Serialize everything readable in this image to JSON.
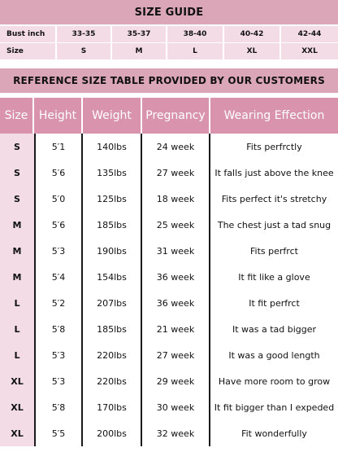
{
  "size_guide": {
    "title": "SIZE GUIDE",
    "rows": [
      [
        "Bust inch",
        "33-35",
        "35-37",
        "38-40",
        "40-42",
        "42-44"
      ],
      [
        "Size",
        "S",
        "M",
        "L",
        "XL",
        "XXL"
      ]
    ]
  },
  "reference": {
    "title": "REFERENCE SIZE TABLE PROVIDED BY OUR CUSTOMERS",
    "headers": [
      "Size",
      "Height",
      "Weight",
      "Pregnancy",
      "Wearing Effection"
    ],
    "rows": [
      [
        "S",
        "5′1",
        "140lbs",
        "24 week",
        "Fits perfrctly"
      ],
      [
        "S",
        "5′6",
        "135lbs",
        "27 week",
        "It falls just above the knee"
      ],
      [
        "S",
        "5′0",
        "125lbs",
        "18 week",
        "Fits perfect it's stretchy"
      ],
      [
        "M",
        "5′6",
        "185lbs",
        "25 week",
        "The chest just a tad snug"
      ],
      [
        "M",
        "5′3",
        "190lbs",
        "31 week",
        "Fits perfrct"
      ],
      [
        "M",
        "5′4",
        "154lbs",
        "36 week",
        "It fit like a glove"
      ],
      [
        "L",
        "5′2",
        "207lbs",
        "36 week",
        "It fit perfrct"
      ],
      [
        "L",
        "5′8",
        "185lbs",
        "21 week",
        "It was a tad bigger"
      ],
      [
        "L",
        "5′3",
        "220lbs",
        "27 week",
        "It was a good length"
      ],
      [
        "XL",
        "5′3",
        "220lbs",
        "29 week",
        "Have more room to grow"
      ],
      [
        "XL",
        "5′8",
        "170lbs",
        "30 week",
        "It fit bigger than I expeded"
      ],
      [
        "XL",
        "5′5",
        "200lbs",
        "32 week",
        "Fit wonderfully"
      ]
    ]
  },
  "colors": {
    "band": "#dca6b9",
    "header_row": "#d993ad",
    "light_cell": "#f3dce6"
  }
}
